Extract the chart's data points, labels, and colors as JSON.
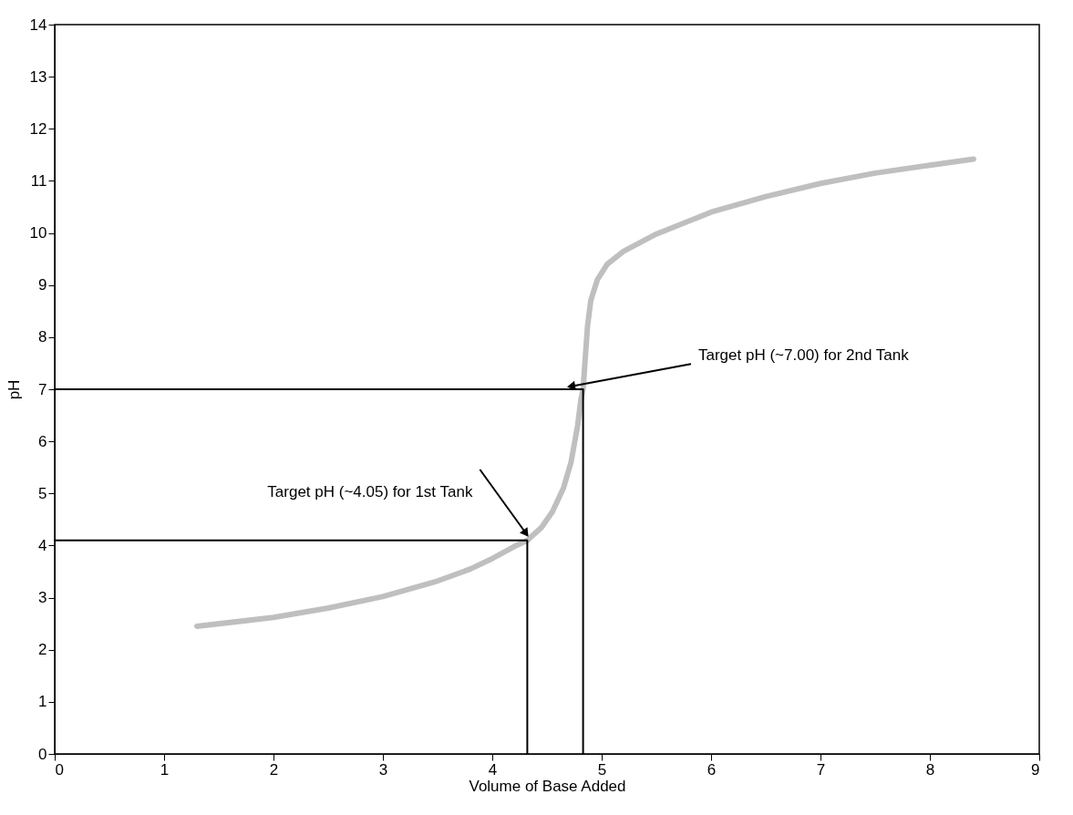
{
  "chart_data": {
    "type": "line",
    "xlabel": "Volume of Base Added",
    "ylabel": "pH",
    "xlim": [
      0,
      9
    ],
    "ylim": [
      0,
      14
    ],
    "xticks": [
      0,
      1,
      2,
      3,
      4,
      5,
      6,
      7,
      8,
      9
    ],
    "yticks": [
      0,
      1,
      2,
      3,
      4,
      5,
      6,
      7,
      8,
      9,
      10,
      11,
      12,
      13,
      14
    ],
    "grid": false,
    "marker": "none",
    "line_style": "solid",
    "series": [
      {
        "color": "#bfbfbf",
        "x": [
          1.3,
          2.0,
          2.5,
          3.0,
          3.5,
          3.8,
          4.0,
          4.2,
          4.32,
          4.45,
          4.55,
          4.65,
          4.72,
          4.78,
          4.81,
          4.83,
          4.85,
          4.87,
          4.9,
          4.96,
          5.05,
          5.2,
          5.5,
          6.0,
          6.5,
          7.0,
          7.5,
          8.0,
          8.4
        ],
        "values": [
          2.45,
          2.62,
          2.8,
          3.02,
          3.32,
          3.55,
          3.75,
          3.98,
          4.1,
          4.35,
          4.65,
          5.1,
          5.6,
          6.3,
          6.8,
          7.0,
          7.6,
          8.2,
          8.7,
          9.1,
          9.4,
          9.65,
          9.98,
          10.4,
          10.7,
          10.95,
          11.15,
          11.3,
          11.42
        ]
      },
      {
        "color": "#000000",
        "x": [
          0,
          4.32,
          4.32
        ],
        "values": [
          4.1,
          4.1,
          0
        ]
      },
      {
        "color": "#000000",
        "x": [
          0,
          4.83,
          4.83
        ],
        "values": [
          7,
          7,
          0
        ]
      }
    ],
    "annotations": [
      {
        "text": "Target pH (~4.05) for 1st Tank",
        "x": 4.32,
        "y": 4.2
      },
      {
        "text": "Target pH (~7.00) for 2nd Tank",
        "x": 4.7,
        "y": 7.05
      }
    ]
  }
}
